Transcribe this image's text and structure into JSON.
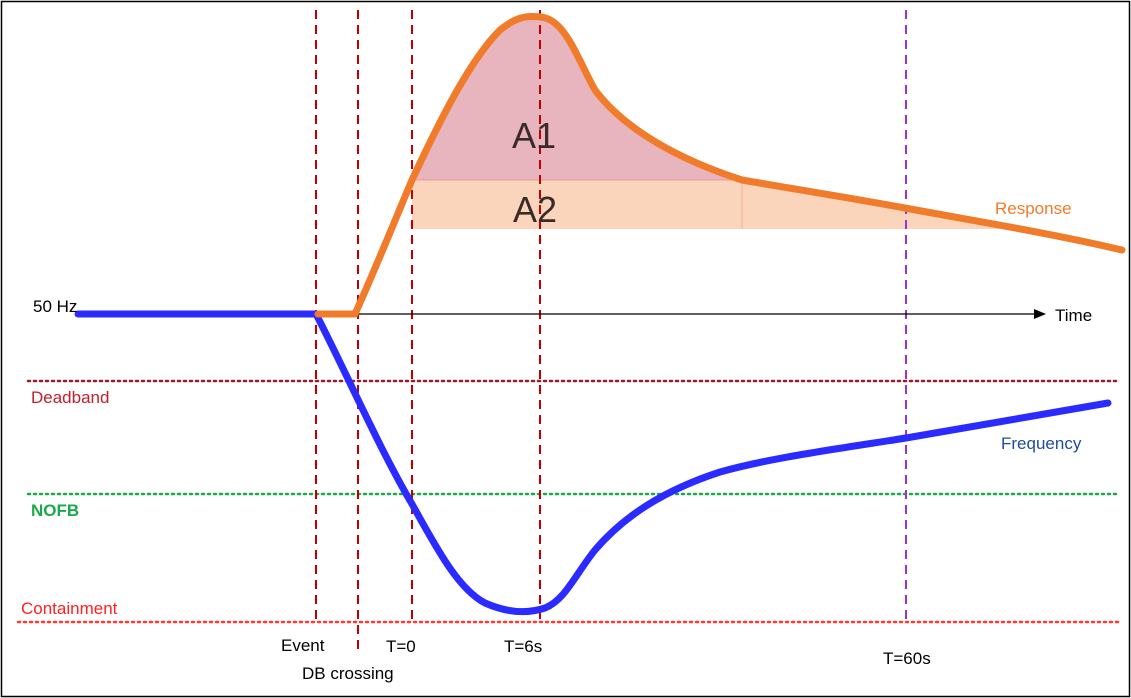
{
  "labels": {
    "fifty_hz": "50 Hz",
    "time": "Time",
    "response": "Response",
    "frequency": "Frequency",
    "deadband": "Deadband",
    "nofb": "NOFB",
    "containment": "Containment",
    "a1": "A1",
    "a2": "A2",
    "event": "Event",
    "db_crossing": "DB crossing",
    "t0": "T=0",
    "t6": "T=6s",
    "t60": "T=60s"
  },
  "colors": {
    "frequency_curve": "#2b2bff",
    "response_curve": "#f07b2a",
    "area_a1": "#e8b4be",
    "area_a2": "#fad5bc",
    "event_markers": "#c00000",
    "t60_marker": "#9933cc",
    "deadband_line": "#9a1a2a",
    "nofb_line": "#1aaa4a",
    "containment_line": "#ff3b2f",
    "frequency_label": "#1f4e99",
    "response_label": "#f07b2a",
    "deadband_label": "#c0202a",
    "nofb_label": "#1aaa4a",
    "containment_label": "#ff2020"
  }
}
